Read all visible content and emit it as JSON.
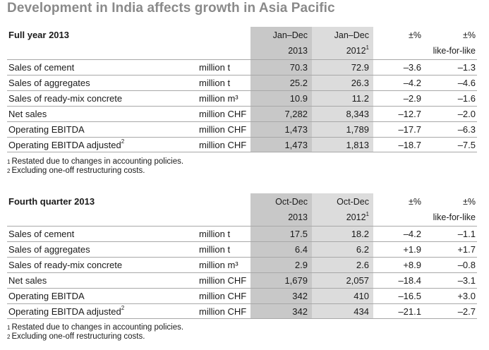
{
  "title": "Development in India affects growth in Asia Pacific",
  "tables": [
    {
      "section": "Full year 2013",
      "headers": {
        "c1_line1": "Jan–Dec",
        "c1_line2": "2013",
        "c2_line1": "Jan–Dec",
        "c2_line2": "2012",
        "c2_note": "1",
        "c3_line1": "±%",
        "c4_line1": "±%",
        "c4_line2": "like-for-like"
      },
      "rows": [
        {
          "label": "Sales of cement",
          "unit": "million t",
          "v2013": "70.3",
          "v2012": "72.9",
          "pct": "–3.6",
          "lfl": "–1.3"
        },
        {
          "label": "Sales of aggregates",
          "unit": "million t",
          "v2013": "25.2",
          "v2012": "26.3",
          "pct": "–4.2",
          "lfl": "–4.6"
        },
        {
          "label": "Sales of ready-mix concrete",
          "unit": "million m³",
          "v2013": "10.9",
          "v2012": "11.2",
          "pct": "–2.9",
          "lfl": "–1.6"
        },
        {
          "label": "Net sales",
          "unit": "million CHF",
          "v2013": "7,282",
          "v2012": "8,343",
          "pct": "–12.7",
          "lfl": "–2.0"
        },
        {
          "label": "Operating EBITDA",
          "unit": "million CHF",
          "v2013": "1,473",
          "v2012": "1,789",
          "pct": "–17.7",
          "lfl": "–6.3"
        },
        {
          "label": "Operating EBITDA adjusted",
          "label_note": "2",
          "unit": "million CHF",
          "v2013": "1,473",
          "v2012": "1,813",
          "pct": "–18.7",
          "lfl": "–7.5"
        }
      ],
      "footnotes": [
        {
          "mark": "1",
          "text": "Restated due to changes in accounting policies."
        },
        {
          "mark": "2",
          "text": "Excluding one-off restructuring costs."
        }
      ]
    },
    {
      "section": "Fourth quarter 2013",
      "headers": {
        "c1_line1": "Oct-Dec",
        "c1_line2": "2013",
        "c2_line1": "Oct-Dec",
        "c2_line2": "2012",
        "c2_note": "1",
        "c3_line1": "±%",
        "c4_line1": "±%",
        "c4_line2": "like-for-like"
      },
      "rows": [
        {
          "label": "Sales of cement",
          "unit": "million t",
          "v2013": "17.5",
          "v2012": "18.2",
          "pct": "–4.2",
          "lfl": "–1.1"
        },
        {
          "label": "Sales of aggregates",
          "unit": "million t",
          "v2013": "6.4",
          "v2012": "6.2",
          "pct": "+1.9",
          "lfl": "+1.7"
        },
        {
          "label": "Sales of ready-mix concrete",
          "unit": "million m³",
          "v2013": "2.9",
          "v2012": "2.6",
          "pct": "+8.9",
          "lfl": "–0.8"
        },
        {
          "label": "Net sales",
          "unit": "million CHF",
          "v2013": "1,679",
          "v2012": "2,057",
          "pct": "–18.4",
          "lfl": "–3.1"
        },
        {
          "label": "Operating EBITDA",
          "unit": "million CHF",
          "v2013": "342",
          "v2012": "410",
          "pct": "–16.5",
          "lfl": "+3.0"
        },
        {
          "label": "Operating EBITDA adjusted",
          "label_note": "2",
          "unit": "million CHF",
          "v2013": "342",
          "v2012": "434",
          "pct": "–21.1",
          "lfl": "–2.7"
        }
      ],
      "footnotes": [
        {
          "mark": "1",
          "text": "Restated due to changes in accounting policies."
        },
        {
          "mark": "2",
          "text": "Excluding one-off restructuring costs."
        }
      ]
    }
  ]
}
